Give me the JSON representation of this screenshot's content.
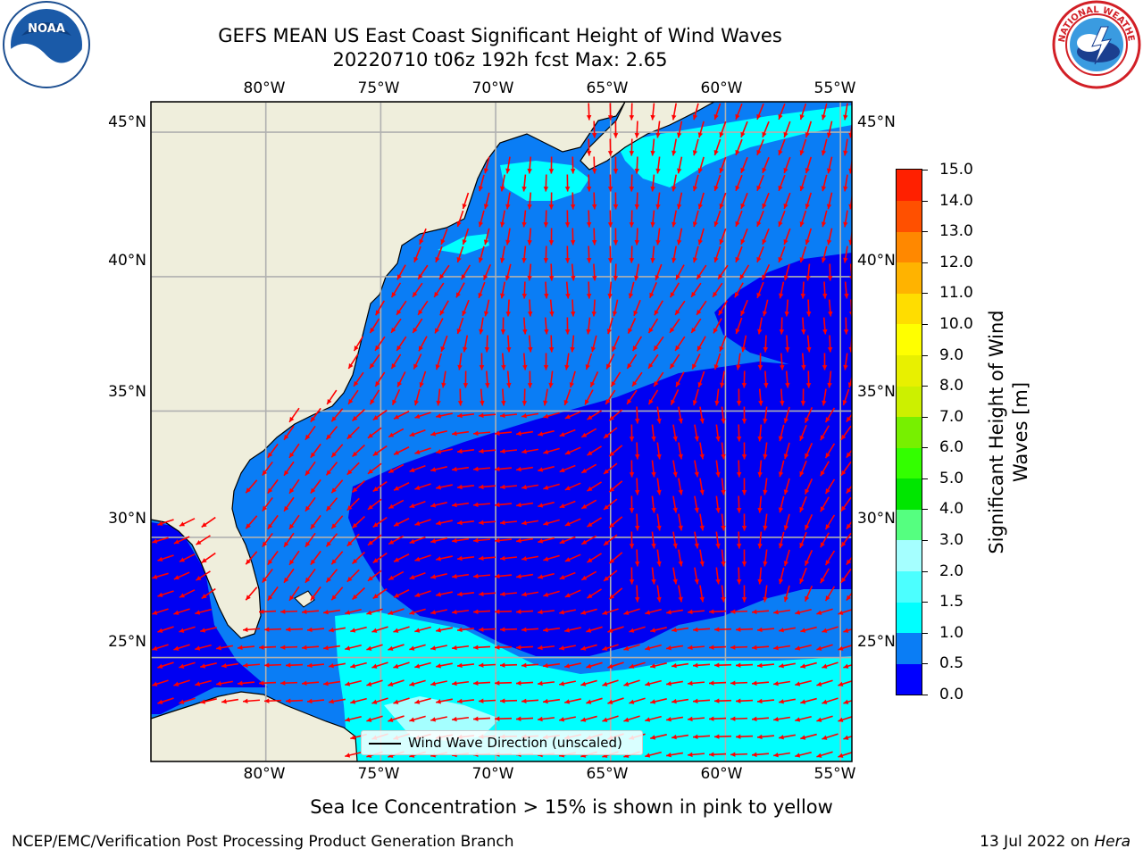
{
  "title": {
    "line1": "GEFS MEAN US East Coast Significant Height of Wind Waves",
    "line2": "20220710 t06z 192h fcst   Max: 2.65"
  },
  "logos": {
    "left": "noaa-logo",
    "right": "nws-logo",
    "left_text": "NOAA",
    "right_text": "NATIONAL WEATHER SERVICE"
  },
  "map": {
    "lon_ticks": [
      "80°W",
      "75°W",
      "70°W",
      "65°W",
      "60°W",
      "55°W"
    ],
    "lat_ticks": [
      "45°N",
      "40°N",
      "35°N",
      "30°N",
      "25°N"
    ],
    "lon_values": [
      -80,
      -75,
      -70,
      -65,
      -60,
      -55
    ],
    "lat_values": [
      45,
      40,
      35,
      30,
      25
    ],
    "lon_range": [
      -85,
      -54.5
    ],
    "lat_range": [
      20.5,
      46
    ],
    "colors": {
      "land": "#efeedc",
      "ocean_0_0.5": "#0000f2",
      "ocean_0.5_1": "#0a7df5",
      "ocean_1_1.5": "#00ffff",
      "ocean_1.5_2": "#4cffff",
      "ocean_2_3": "#a5ffff",
      "arrow": "#ff0000",
      "grid": "#b0b0b0"
    }
  },
  "colorbar": {
    "label": "Significant Height of Wind Waves [m]",
    "ticks": [
      "0.0",
      "0.5",
      "1.0",
      "1.5",
      "2.0",
      "3.0",
      "4.0",
      "5.0",
      "6.0",
      "7.0",
      "8.0",
      "9.0",
      "10.0",
      "11.0",
      "12.0",
      "13.0",
      "14.0",
      "15.0"
    ],
    "colors": [
      "#0000ff",
      "#0a7df5",
      "#00ffff",
      "#4cffff",
      "#a5ffff",
      "#55ff80",
      "#00e600",
      "#33ff00",
      "#77f000",
      "#ccf000",
      "#e8f000",
      "#ffff00",
      "#ffdd00",
      "#ffb300",
      "#ff8800",
      "#ff5000",
      "#ff2000"
    ]
  },
  "legend": {
    "label": "Wind Wave Direction (unscaled)"
  },
  "subtitle": "Sea Ice Concentration > 15% is shown in pink to yellow",
  "footer": {
    "left": "NCEP/EMC/Verification Post Processing Product Generation Branch",
    "date": "13 Jul 2022 on ",
    "machine": "Hera"
  }
}
